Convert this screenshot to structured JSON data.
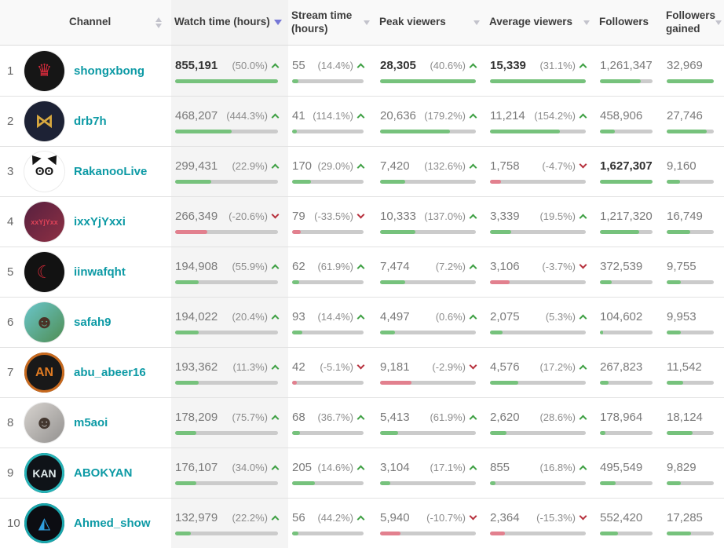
{
  "colors": {
    "channel_link": "#0d9aa5",
    "positive": "#3fa044",
    "negative": "#b7323e",
    "bar_positive": "#76c27c",
    "bar_negative": "#e2808e",
    "bar_track": "#cbcbcb",
    "sort_active": "#7577d6",
    "sorted_column_bg": "#f4f4f4"
  },
  "header": {
    "columns": [
      {
        "label": "Channel",
        "sort": "both"
      },
      {
        "label": "Watch time (hours)",
        "sort": "active-desc"
      },
      {
        "label": "Stream time (hours)",
        "sort": "desc"
      },
      {
        "label": "Peak viewers",
        "sort": "desc"
      },
      {
        "label": "Average viewers",
        "sort": "desc"
      },
      {
        "label": "Followers",
        "sort": "desc"
      },
      {
        "label": "Followers gained",
        "sort": "desc"
      }
    ]
  },
  "rows": [
    {
      "rank": "1",
      "channel": "shongxbong",
      "avatar": {
        "bg": "#161616",
        "color": "#d02a3a",
        "text": "♛",
        "size": 22
      },
      "watch": {
        "value": "855,191",
        "change": "(50.0%)",
        "dir": "up",
        "bar": 100,
        "bold": true
      },
      "stream": {
        "value": "55",
        "change": "(14.4%)",
        "dir": "up",
        "bar": 9
      },
      "peak": {
        "value": "28,305",
        "change": "(40.6%)",
        "dir": "up",
        "bar": 100,
        "bold": true
      },
      "avg": {
        "value": "15,339",
        "change": "(31.1%)",
        "dir": "up",
        "bar": 100,
        "bold": true
      },
      "followers": {
        "value": "1,261,347",
        "dir": "up",
        "bar": 77.5
      },
      "gained": {
        "value": "32,969",
        "dir": "up",
        "bar": 100
      }
    },
    {
      "rank": "2",
      "channel": "drb7h",
      "avatar": {
        "bg": "#1d2235",
        "color": "#d8a93f",
        "text": "⋈",
        "size": 24
      },
      "watch": {
        "value": "468,207",
        "change": "(444.3%)",
        "dir": "up",
        "bar": 54.7
      },
      "stream": {
        "value": "41",
        "change": "(114.1%)",
        "dir": "up",
        "bar": 6.5
      },
      "peak": {
        "value": "20,636",
        "change": "(179.2%)",
        "dir": "up",
        "bar": 72.9
      },
      "avg": {
        "value": "11,214",
        "change": "(154.2%)",
        "dir": "up",
        "bar": 73.1
      },
      "followers": {
        "value": "458,906",
        "dir": "up",
        "bar": 28.2
      },
      "gained": {
        "value": "27,746",
        "dir": "up",
        "bar": 84.2
      }
    },
    {
      "rank": "3",
      "channel": "RakanooLive",
      "avatar": {
        "bg": "#ffffff",
        "color": "#141414",
        "text": "ʘʘ",
        "size": 15,
        "ears": true
      },
      "watch": {
        "value": "299,431",
        "change": "(22.9%)",
        "dir": "up",
        "bar": 35.0
      },
      "stream": {
        "value": "170",
        "change": "(29.0%)",
        "dir": "up",
        "bar": 26.5
      },
      "peak": {
        "value": "7,420",
        "change": "(132.6%)",
        "dir": "up",
        "bar": 26.2
      },
      "avg": {
        "value": "1,758",
        "change": "(-4.7%)",
        "dir": "down",
        "bar": 11.5
      },
      "followers": {
        "value": "1,627,307",
        "dir": "up",
        "bar": 100,
        "bold": true
      },
      "gained": {
        "value": "9,160",
        "dir": "up",
        "bar": 27.8
      }
    },
    {
      "rank": "4",
      "channel": "ixxYjYxxi",
      "avatar": {
        "bg": "#57203f",
        "bg2": "#8e3044",
        "color": "#e04358",
        "text": "xxYjYxx",
        "size": 9
      },
      "watch": {
        "value": "266,349",
        "change": "(-20.6%)",
        "dir": "down",
        "bar": 31.1
      },
      "stream": {
        "value": "79",
        "change": "(-33.5%)",
        "dir": "down",
        "bar": 12.3
      },
      "peak": {
        "value": "10,333",
        "change": "(137.0%)",
        "dir": "up",
        "bar": 36.5
      },
      "avg": {
        "value": "3,339",
        "change": "(19.5%)",
        "dir": "up",
        "bar": 21.8
      },
      "followers": {
        "value": "1,217,320",
        "dir": "up",
        "bar": 74.8
      },
      "gained": {
        "value": "16,749",
        "dir": "up",
        "bar": 50.8
      }
    },
    {
      "rank": "5",
      "channel": "iinwafqht",
      "avatar": {
        "bg": "#121212",
        "color": "#cf2937",
        "text": "☾",
        "size": 22
      },
      "watch": {
        "value": "194,908",
        "change": "(55.9%)",
        "dir": "up",
        "bar": 22.8
      },
      "stream": {
        "value": "62",
        "change": "(61.9%)",
        "dir": "up",
        "bar": 9.7
      },
      "peak": {
        "value": "7,474",
        "change": "(7.2%)",
        "dir": "up",
        "bar": 26.4
      },
      "avg": {
        "value": "3,106",
        "change": "(-3.7%)",
        "dir": "down",
        "bar": 20.2
      },
      "followers": {
        "value": "372,539",
        "dir": "up",
        "bar": 22.9
      },
      "gained": {
        "value": "9,755",
        "dir": "up",
        "bar": 29.6
      }
    },
    {
      "rank": "6",
      "channel": "safah9",
      "avatar": {
        "bg": "#6ac6cb",
        "bg2": "#4f8d52",
        "color": "#4a3226",
        "text": "☻",
        "size": 24
      },
      "watch": {
        "value": "194,022",
        "change": "(20.4%)",
        "dir": "up",
        "bar": 22.7
      },
      "stream": {
        "value": "93",
        "change": "(14.4%)",
        "dir": "up",
        "bar": 14.5
      },
      "peak": {
        "value": "4,497",
        "change": "(0.6%)",
        "dir": "up",
        "bar": 15.9
      },
      "avg": {
        "value": "2,075",
        "change": "(5.3%)",
        "dir": "up",
        "bar": 13.5
      },
      "followers": {
        "value": "104,602",
        "dir": "up",
        "bar": 6.4
      },
      "gained": {
        "value": "9,953",
        "dir": "up",
        "bar": 30.2
      }
    },
    {
      "rank": "7",
      "channel": "abu_abeer16",
      "avatar": {
        "bg": "#191919",
        "color": "#e07b22",
        "text": "AN",
        "size": 16,
        "ring": "#c96a1e"
      },
      "watch": {
        "value": "193,362",
        "change": "(11.3%)",
        "dir": "up",
        "bar": 22.6
      },
      "stream": {
        "value": "42",
        "change": "(-5.1%)",
        "dir": "down",
        "bar": 6.6
      },
      "peak": {
        "value": "9,181",
        "change": "(-2.9%)",
        "dir": "down",
        "bar": 32.4
      },
      "avg": {
        "value": "4,576",
        "change": "(17.2%)",
        "dir": "up",
        "bar": 29.8
      },
      "followers": {
        "value": "267,823",
        "dir": "up",
        "bar": 16.5
      },
      "gained": {
        "value": "11,542",
        "dir": "up",
        "bar": 35.0
      }
    },
    {
      "rank": "8",
      "channel": "m5aoi",
      "avatar": {
        "bg": "#d7d3cf",
        "bg2": "#93918f",
        "color": "#43372f",
        "text": "☻",
        "size": 24
      },
      "watch": {
        "value": "178,209",
        "change": "(75.7%)",
        "dir": "up",
        "bar": 20.8
      },
      "stream": {
        "value": "68",
        "change": "(36.7%)",
        "dir": "up",
        "bar": 10.6
      },
      "peak": {
        "value": "5,413",
        "change": "(61.9%)",
        "dir": "up",
        "bar": 19.1
      },
      "avg": {
        "value": "2,620",
        "change": "(28.6%)",
        "dir": "up",
        "bar": 17.1
      },
      "followers": {
        "value": "178,964",
        "dir": "up",
        "bar": 11.0
      },
      "gained": {
        "value": "18,124",
        "dir": "up",
        "bar": 55.0
      }
    },
    {
      "rank": "9",
      "channel": "ABOKYAN",
      "avatar": {
        "bg": "#0f1318",
        "color": "#dfe9ea",
        "text": "KAN",
        "size": 14,
        "ring": "#27b4b8"
      },
      "watch": {
        "value": "176,107",
        "change": "(34.0%)",
        "dir": "up",
        "bar": 20.6
      },
      "stream": {
        "value": "205",
        "change": "(14.6%)",
        "dir": "up",
        "bar": 32.0
      },
      "peak": {
        "value": "3,104",
        "change": "(17.1%)",
        "dir": "up",
        "bar": 11.0
      },
      "avg": {
        "value": "855",
        "change": "(16.8%)",
        "dir": "up",
        "bar": 5.6
      },
      "followers": {
        "value": "495,549",
        "dir": "up",
        "bar": 30.5
      },
      "gained": {
        "value": "9,829",
        "dir": "up",
        "bar": 29.8
      }
    },
    {
      "rank": "10",
      "channel": "Ahmed_show",
      "avatar": {
        "bg": "#0c0d12",
        "color": "#2f9fe0",
        "text": "◭",
        "size": 20,
        "ring": "#1aa7ad"
      },
      "watch": {
        "value": "132,979",
        "change": "(22.2%)",
        "dir": "up",
        "bar": 15.5
      },
      "stream": {
        "value": "56",
        "change": "(44.2%)",
        "dir": "up",
        "bar": 8.8
      },
      "peak": {
        "value": "5,940",
        "change": "(-10.7%)",
        "dir": "down",
        "bar": 21.0
      },
      "avg": {
        "value": "2,364",
        "change": "(-15.3%)",
        "dir": "down",
        "bar": 15.4
      },
      "followers": {
        "value": "552,420",
        "dir": "up",
        "bar": 33.9
      },
      "gained": {
        "value": "17,285",
        "dir": "up",
        "bar": 52.4
      }
    }
  ]
}
